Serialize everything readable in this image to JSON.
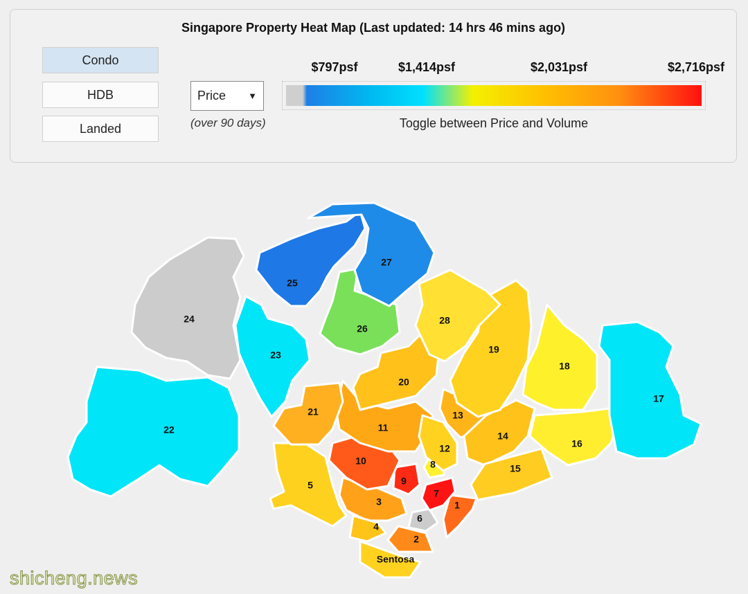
{
  "header": {
    "title": "Singapore Property Heat Map (Last updated: 14 hrs 46 mins ago)"
  },
  "property_types": [
    "Condo",
    "HDB",
    "Landed"
  ],
  "metric_select": {
    "selected": "Price",
    "note": "(over 90 days)"
  },
  "legend": {
    "labels": [
      "$797psf",
      "$1,414psf",
      "$2,031psf",
      "$2,716psf"
    ],
    "caption": "Toggle between Price and Volume"
  },
  "districts": [
    {
      "label": "1"
    },
    {
      "label": "2"
    },
    {
      "label": "3"
    },
    {
      "label": "4"
    },
    {
      "label": "5"
    },
    {
      "label": "6"
    },
    {
      "label": "7"
    },
    {
      "label": "8"
    },
    {
      "label": "9"
    },
    {
      "label": "10"
    },
    {
      "label": "11"
    },
    {
      "label": "12"
    },
    {
      "label": "13"
    },
    {
      "label": "14"
    },
    {
      "label": "15"
    },
    {
      "label": "16"
    },
    {
      "label": "17"
    },
    {
      "label": "18"
    },
    {
      "label": "19"
    },
    {
      "label": "20"
    },
    {
      "label": "21"
    },
    {
      "label": "22"
    },
    {
      "label": "23"
    },
    {
      "label": "24"
    },
    {
      "label": "25"
    },
    {
      "label": "26"
    },
    {
      "label": "27"
    },
    {
      "label": "28"
    },
    {
      "label": "Sentosa"
    }
  ],
  "watermark": "shicheng.news"
}
